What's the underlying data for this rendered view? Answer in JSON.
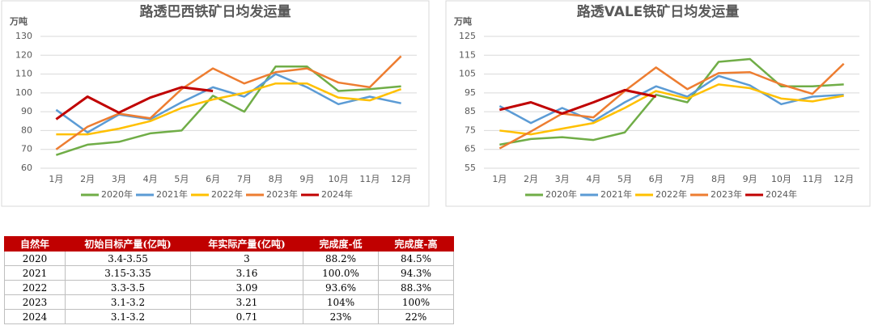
{
  "chart_data": [
    {
      "type": "line",
      "title": "路透巴西铁矿日均发运量",
      "y_label": "万吨",
      "categories": [
        "1月",
        "2月",
        "3月",
        "4月",
        "5月",
        "6月",
        "7月",
        "8月",
        "9月",
        "10月",
        "11月",
        "12月"
      ],
      "ylim": [
        60,
        130
      ],
      "yticks": [
        60,
        70,
        80,
        90,
        100,
        110,
        120,
        130
      ],
      "grid": true,
      "legend": "bottom",
      "series": [
        {
          "name": "2020年",
          "color": "#70ad47",
          "values": [
            67,
            72.5,
            74,
            78.5,
            80,
            98.5,
            90,
            114,
            114,
            101,
            102,
            103.5
          ]
        },
        {
          "name": "2021年",
          "color": "#5b9bd5",
          "values": [
            91,
            79,
            88.5,
            86,
            95,
            103,
            98,
            110,
            103,
            94,
            98,
            94.5
          ]
        },
        {
          "name": "2022年",
          "color": "#ffc000",
          "values": [
            78,
            78,
            81,
            85,
            92,
            96.5,
            100,
            105,
            105,
            97.5,
            96,
            102
          ]
        },
        {
          "name": "2023年",
          "color": "#ed7d31",
          "values": [
            70,
            82,
            89,
            86.5,
            102,
            113,
            105,
            111,
            113,
            105.5,
            103,
            119.5
          ]
        },
        {
          "name": "2024年",
          "color": "#c00000",
          "values": [
            86,
            98,
            89.5,
            97.5,
            103,
            101,
            null,
            null,
            null,
            null,
            null,
            null
          ]
        }
      ]
    },
    {
      "type": "line",
      "title": "路透VALE铁矿日均发运量",
      "y_label": "万吨",
      "categories": [
        "1月",
        "2月",
        "3月",
        "4月",
        "5月",
        "6月",
        "7月",
        "8月",
        "9月",
        "10月",
        "11月",
        "12月"
      ],
      "ylim": [
        55,
        125
      ],
      "yticks": [
        55,
        65,
        75,
        85,
        95,
        105,
        115,
        125
      ],
      "grid": true,
      "legend": "bottom",
      "series": [
        {
          "name": "2020年",
          "color": "#70ad47",
          "values": [
            67.5,
            70.5,
            71.5,
            70,
            74,
            94,
            90,
            111.5,
            113,
            98.5,
            98.5,
            99.5
          ]
        },
        {
          "name": "2021年",
          "color": "#5b9bd5",
          "values": [
            88,
            79,
            87,
            80,
            90,
            98.5,
            93,
            104,
            99,
            89,
            93,
            94
          ]
        },
        {
          "name": "2022年",
          "color": "#ffc000",
          "values": [
            75,
            73,
            76,
            79,
            87,
            96,
            92,
            99.5,
            97.5,
            92,
            90.5,
            93.5
          ]
        },
        {
          "name": "2023年",
          "color": "#ed7d31",
          "values": [
            65.5,
            74.5,
            84,
            82,
            96,
            108.5,
            97,
            105.5,
            106,
            99.5,
            94.5,
            110.5
          ]
        },
        {
          "name": "2024年",
          "color": "#c00000",
          "values": [
            86,
            90,
            84,
            90,
            96.5,
            93,
            null,
            null,
            null,
            null,
            null,
            null
          ]
        }
      ]
    }
  ],
  "table": {
    "header": [
      "自然年",
      "初始目标产量(亿吨)",
      "年实际产量(亿吨)",
      "完成度-低",
      "完成度-高"
    ],
    "rows": [
      [
        "2020",
        "3.4-3.55",
        "3",
        "88.2%",
        "84.5%"
      ],
      [
        "2021",
        "3.15-3.35",
        "3.16",
        "100.0%",
        "94.3%"
      ],
      [
        "2022",
        "3.3-3.5",
        "3.09",
        "93.6%",
        "88.3%"
      ],
      [
        "2023",
        "3.1-3.2",
        "3.21",
        "104%",
        "100%"
      ],
      [
        "2024",
        "3.1-3.2",
        "0.71",
        "23%",
        "22%"
      ]
    ]
  }
}
